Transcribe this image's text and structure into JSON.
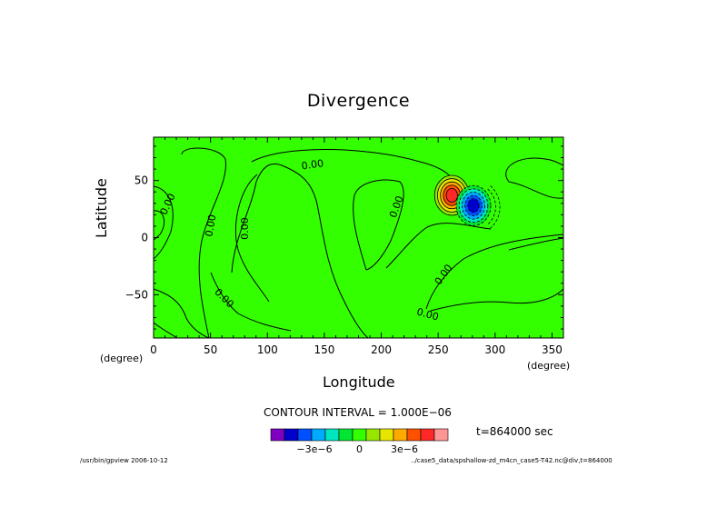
{
  "chart_data": {
    "type": "heatmap",
    "title": "Divergence",
    "xlabel": "Longitude",
    "ylabel": "Latitude",
    "x_unit_left": "(degree)",
    "x_unit_right": "(degree)",
    "xlim": [
      0,
      360
    ],
    "ylim": [
      -87.9,
      87.9
    ],
    "x_ticks": [
      0,
      50,
      100,
      150,
      200,
      250,
      300,
      350
    ],
    "y_ticks": [
      -50,
      0,
      50
    ],
    "x_tick_labels": [
      "0",
      "50",
      "100",
      "150",
      "200",
      "250",
      "300",
      "350"
    ],
    "y_tick_labels": [
      "−50",
      "0",
      "50"
    ],
    "contour_labels": [
      {
        "text": "0.00",
        "lon": 140,
        "lat": 61,
        "rot": -8
      },
      {
        "text": "0.00",
        "lon": 15,
        "lat": 28,
        "rot": -65
      },
      {
        "text": "0.00",
        "lon": 53,
        "lat": 10,
        "rot": -80
      },
      {
        "text": "0.00",
        "lon": 83,
        "lat": 8,
        "rot": -90
      },
      {
        "text": "0.00",
        "lon": 216,
        "lat": 26,
        "rot": -70
      },
      {
        "text": "0.00",
        "lon": 257,
        "lat": -34,
        "rot": -55
      },
      {
        "text": "0.00",
        "lon": 60,
        "lat": -55,
        "rot": 45
      },
      {
        "text": "0.00",
        "lon": 240,
        "lat": -70,
        "rot": 15
      }
    ],
    "anomalies": [
      {
        "lon": 262,
        "lat": 37,
        "peak_level": 5,
        "sign": "positive"
      },
      {
        "lon": 281,
        "lat": 28,
        "peak_level": -5,
        "sign": "negative"
      }
    ],
    "contour_interval_text": "CONTOUR INTERVAL = 1.000E−06",
    "time_text": "t=864000 sec",
    "colorbar": {
      "colors": [
        "#7f00bf",
        "#0000cd",
        "#0050ff",
        "#00aaff",
        "#00e6bf",
        "#00e632",
        "#33ff00",
        "#96e600",
        "#e6e600",
        "#ffaa00",
        "#ff5000",
        "#ff2828",
        "#ff9696"
      ],
      "tick_labels": [
        "−3e−6",
        "0",
        "3e−6"
      ]
    },
    "background_color": "#33ff00",
    "grid": false
  },
  "footer": {
    "left": "/usr/bin/gpview  2006-10-12",
    "right": "../case5_data/spshallow-zd_m4cn_case5-T42.nc@div,t=864000"
  }
}
